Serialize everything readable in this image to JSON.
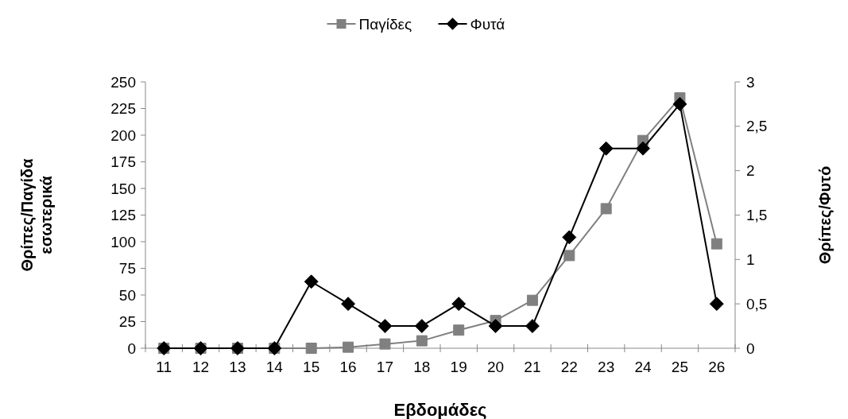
{
  "chart_data": {
    "type": "line",
    "xlabel": "Εβδομάδες",
    "ylabel": "Θρίπες/Παγίδα εσωτερικά",
    "y2label": "Θρίπες/Φυτό",
    "categories": [
      "11",
      "12",
      "13",
      "14",
      "15",
      "16",
      "17",
      "18",
      "19",
      "20",
      "21",
      "22",
      "23",
      "24",
      "25",
      "26"
    ],
    "series": [
      {
        "name": "Παγίδες",
        "color": "#808080",
        "marker": "square",
        "values": [
          0,
          0,
          0,
          0,
          0,
          1,
          4,
          7,
          17,
          26,
          45,
          87,
          131,
          195,
          235,
          98
        ]
      },
      {
        "name": "Φυτά",
        "color": "#000000",
        "marker": "diamond",
        "axis": "y2",
        "values": [
          0,
          0,
          0,
          0,
          0.75,
          0.5,
          0.25,
          0.25,
          0.5,
          0.25,
          0.25,
          1.25,
          2.25,
          2.25,
          2.75,
          0.5
        ]
      }
    ],
    "ylim": [
      0,
      250
    ],
    "yticks": [
      0,
      25,
      50,
      75,
      100,
      125,
      150,
      175,
      200,
      225,
      250
    ],
    "y2lim": [
      0,
      3
    ],
    "y2ticks": [
      0,
      {
        "value": 0.5,
        "label": "0,5"
      },
      1,
      {
        "value": 1.5,
        "label": "1,5"
      },
      2,
      {
        "value": 2.5,
        "label": "2,5"
      },
      3
    ],
    "grid": false,
    "legend": "top"
  }
}
